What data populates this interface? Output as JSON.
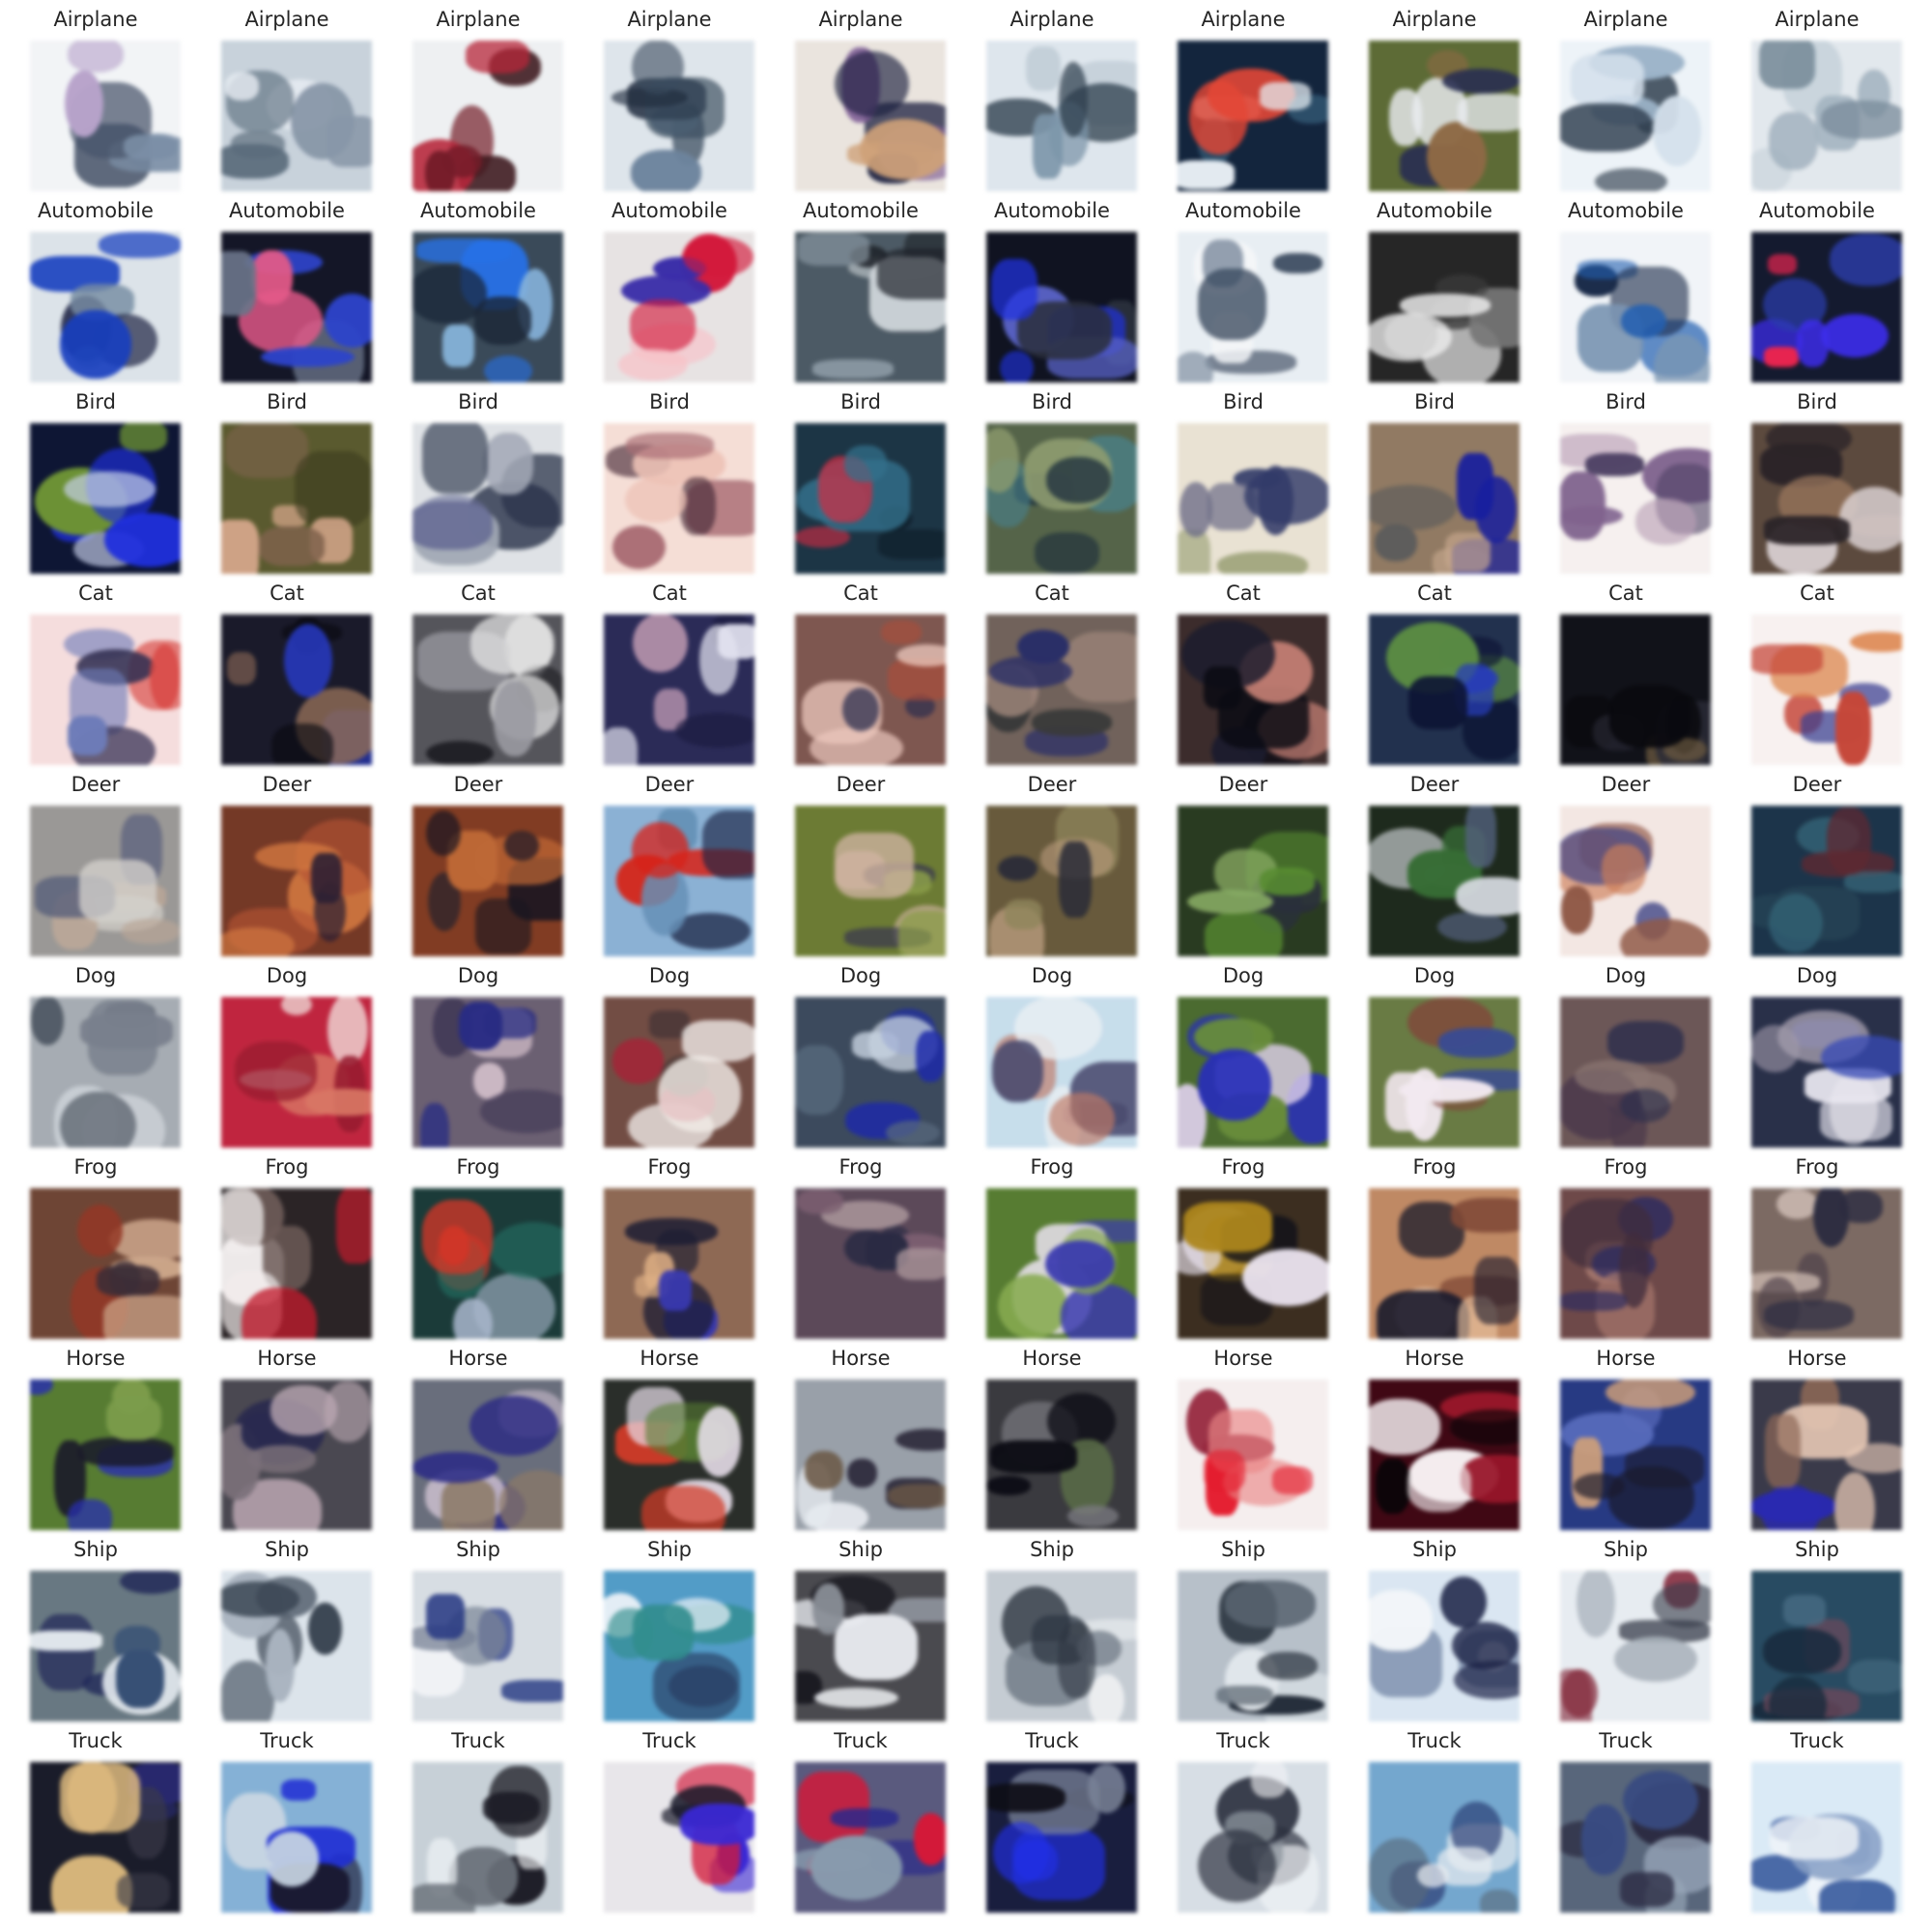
{
  "rows": [
    {
      "label": "Airplane",
      "cells": [
        {
          "bg": "#f2f4f6",
          "blobs": [
            "#7d8ea3",
            "#4a5568",
            "#b6a3c6"
          ]
        },
        {
          "bg": "#c9d2da",
          "blobs": [
            "#5b6a78",
            "#e6ebf0",
            "#8a97a5"
          ]
        },
        {
          "bg": "#eef0f2",
          "blobs": [
            "#6b1f2a",
            "#3a1a1e",
            "#a82b3b"
          ]
        },
        {
          "bg": "#dfe5ea",
          "blobs": [
            "#3d4c5c",
            "#6f8399",
            "#1f2a3a"
          ]
        },
        {
          "bg": "#e9e4df",
          "blobs": [
            "#1b1f3b",
            "#7b5e8f",
            "#c9a27e"
          ]
        },
        {
          "bg": "#dfe6ec",
          "blobs": [
            "#2f3d4a",
            "#7f95a6",
            "#bfcad3"
          ]
        },
        {
          "bg": "#15253a",
          "blobs": [
            "#e7edf2",
            "#d24b3c",
            "#3d6078"
          ]
        },
        {
          "bg": "#5e6a3c",
          "blobs": [
            "#e9ecef",
            "#2a2f4d",
            "#8a6a4a"
          ]
        },
        {
          "bg": "#eef3f7",
          "blobs": [
            "#33404e",
            "#9fb4c6",
            "#d5e0ea"
          ]
        },
        {
          "bg": "#e3e8ec",
          "blobs": [
            "#a5b3be",
            "#c9d3da",
            "#7b8b98"
          ]
        }
      ]
    },
    {
      "label": "Automobile",
      "cells": [
        {
          "bg": "#dde3e8",
          "blobs": [
            "#1d3fae",
            "#2a2f4a",
            "#7a8da0"
          ]
        },
        {
          "bg": "#141625",
          "blobs": [
            "#3145b9",
            "#d55d86",
            "#6b7485"
          ]
        },
        {
          "bg": "#3c4a57",
          "blobs": [
            "#2f6fd6",
            "#8ab1d3",
            "#1b2535"
          ]
        },
        {
          "bg": "#e7e3e3",
          "blobs": [
            "#c01e3c",
            "#3a2f9a",
            "#f2c2c8"
          ]
        },
        {
          "bg": "#4e5a63",
          "blobs": [
            "#1e2228",
            "#8a979f",
            "#cdd3d7"
          ]
        },
        {
          "bg": "#10131f",
          "blobs": [
            "#2333c9",
            "#5b63b8",
            "#2b2f3a"
          ]
        },
        {
          "bg": "#e9eef2",
          "blobs": [
            "#3c4a5c",
            "#f4f6f8",
            "#8894a3"
          ]
        },
        {
          "bg": "#262626",
          "blobs": [
            "#f0f0f0",
            "#767676",
            "#3e3e3e"
          ]
        },
        {
          "bg": "#f1f4f7",
          "blobs": [
            "#2a5ea5",
            "#1b2a45",
            "#7e95ae"
          ]
        },
        {
          "bg": "#151a2c",
          "blobs": [
            "#3d2fd4",
            "#d62a4f",
            "#2e3d9e"
          ]
        }
      ]
    },
    {
      "label": "Bird",
      "cells": [
        {
          "bg": "#0f1630",
          "blobs": [
            "#2330c7",
            "#6f8f3f",
            "#c8d0e6"
          ]
        },
        {
          "bg": "#5a5a34",
          "blobs": [
            "#c9a38a",
            "#7b6350",
            "#3a3a22"
          ]
        },
        {
          "bg": "#dfe2e5",
          "blobs": [
            "#2b3347",
            "#6a6f91",
            "#a3a8b3"
          ]
        },
        {
          "bg": "#f3dfd8",
          "blobs": [
            "#a46f75",
            "#3c2430",
            "#e8c2b8"
          ]
        },
        {
          "bg": "#1f3442",
          "blobs": [
            "#3a6f86",
            "#c23043",
            "#0f1d26"
          ]
        },
        {
          "bg": "#56634c",
          "blobs": [
            "#1f2f3a",
            "#4f7f86",
            "#8f9b74"
          ]
        },
        {
          "bg": "#e8e2d5",
          "blobs": [
            "#333a63",
            "#9aa07a",
            "#6f6f86"
          ]
        },
        {
          "bg": "#8e7a66",
          "blobs": [
            "#1a1f8e",
            "#5b5b5b",
            "#c2a890"
          ]
        },
        {
          "bg": "#f5f0ef",
          "blobs": [
            "#7d6489",
            "#b7a2b5",
            "#4c4260"
          ]
        },
        {
          "bg": "#5a4a40",
          "blobs": [
            "#2a2428",
            "#9a7a63",
            "#d8cfd0"
          ]
        }
      ]
    },
    {
      "label": "Cat",
      "cells": [
        {
          "bg": "#f3dede",
          "blobs": [
            "#6f7bb0",
            "#c84a46",
            "#34304f"
          ]
        },
        {
          "bg": "#1a1a28",
          "blobs": [
            "#0a0a10",
            "#2b3bb0",
            "#8a6c5a"
          ]
        },
        {
          "bg": "#55555a",
          "blobs": [
            "#eeeeee",
            "#1f1f24",
            "#9a9a9f"
          ]
        },
        {
          "bg": "#2b2b52",
          "blobs": [
            "#e3e3ef",
            "#1a1a3a",
            "#c8a5b8"
          ]
        },
        {
          "bg": "#7a5852",
          "blobs": [
            "#e7c8be",
            "#2a2d4a",
            "#a05040"
          ]
        },
        {
          "bg": "#6f625c",
          "blobs": [
            "#2b2f60",
            "#a08a80",
            "#3a3a3a"
          ]
        },
        {
          "bg": "#3a2c2c",
          "blobs": [
            "#0b0b12",
            "#c5867c",
            "#1c1c2c"
          ]
        },
        {
          "bg": "#24314a",
          "blobs": [
            "#0d1430",
            "#5f8a4a",
            "#2b3da8"
          ]
        },
        {
          "bg": "#111218",
          "blobs": [
            "#0a0a0e",
            "#6f5d45",
            "#2a2a35"
          ]
        },
        {
          "bg": "#f7f1f0",
          "blobs": [
            "#b84a3e",
            "#3a3f86",
            "#d48a5a"
          ]
        }
      ]
    },
    {
      "label": "Deer",
      "cells": [
        {
          "bg": "#9a9896",
          "blobs": [
            "#b7a79a",
            "#5a6078",
            "#d3d0cc"
          ]
        },
        {
          "bg": "#6e3a2a",
          "blobs": [
            "#c97a4a",
            "#2a2030",
            "#a9553a"
          ]
        },
        {
          "bg": "#7a3e28",
          "blobs": [
            "#1a1620",
            "#b56a3e",
            "#3d2a2a"
          ]
        },
        {
          "bg": "#8fb0cf",
          "blobs": [
            "#c4281f",
            "#1c2440",
            "#6a8fb0"
          ]
        },
        {
          "bg": "#6d7a3c",
          "blobs": [
            "#c9b2a0",
            "#3a3a4c",
            "#8a9a52"
          ]
        },
        {
          "bg": "#665a40",
          "blobs": [
            "#2a2c36",
            "#8e8560",
            "#b39a80"
          ]
        },
        {
          "bg": "#2b3a24",
          "blobs": [
            "#5c8a3a",
            "#2a2f3a",
            "#8aa86a"
          ]
        },
        {
          "bg": "#1f2a1e",
          "blobs": [
            "#d6d9de",
            "#3c6a3a",
            "#55607a"
          ]
        },
        {
          "bg": "#f2e7e4",
          "blobs": [
            "#8a5a4a",
            "#3a3f7a",
            "#c58060"
          ]
        },
        {
          "bg": "#1f3447",
          "blobs": [
            "#3e6a7a",
            "#5a2a32",
            "#274050"
          ]
        }
      ]
    },
    {
      "label": "Dog",
      "cells": [
        {
          "bg": "#a7acb2",
          "blobs": [
            "#4d5560",
            "#cfd4d9",
            "#7a808a"
          ]
        },
        {
          "bg": "#b02a40",
          "blobs": [
            "#f3eae6",
            "#cf7a6a",
            "#8a1f30"
          ]
        },
        {
          "bg": "#6a6070",
          "blobs": [
            "#2a2d78",
            "#c8b8c2",
            "#3c3650"
          ]
        },
        {
          "bg": "#6e4e46",
          "blobs": [
            "#f0ebe8",
            "#a21e35",
            "#4a3a38"
          ]
        },
        {
          "bg": "#3e4a5a",
          "blobs": [
            "#1e2a9a",
            "#c8d2de",
            "#5a6a7a"
          ]
        },
        {
          "bg": "#c9dde9",
          "blobs": [
            "#4a4a6a",
            "#e9eef2",
            "#b87a6a"
          ]
        },
        {
          "bg": "#4e6a36",
          "blobs": [
            "#2a2fa8",
            "#dcd0e6",
            "#6a8a44"
          ]
        },
        {
          "bg": "#6a7a4a",
          "blobs": [
            "#f1e9ef",
            "#7a4a3e",
            "#3a4a8a"
          ]
        },
        {
          "bg": "#6a5858",
          "blobs": [
            "#2b2d48",
            "#8a7874",
            "#4a3a4a"
          ]
        },
        {
          "bg": "#2a3046",
          "blobs": [
            "#e8e6ee",
            "#3a4aa8",
            "#a09aa8"
          ]
        }
      ]
    },
    {
      "label": "Frog",
      "cells": [
        {
          "bg": "#6a4638",
          "blobs": [
            "#c9a890",
            "#8a3a2a",
            "#3a2e36"
          ]
        },
        {
          "bg": "#2a2426",
          "blobs": [
            "#f0ecec",
            "#6a5a58",
            "#b0202f"
          ]
        },
        {
          "bg": "#1e3a38",
          "blobs": [
            "#c13a2e",
            "#aab6c8",
            "#2a6a60"
          ]
        },
        {
          "bg": "#8a6a58",
          "blobs": [
            "#1c1c30",
            "#d8b08a",
            "#3a3aa0"
          ]
        },
        {
          "bg": "#5a4a58",
          "blobs": [
            "#2a2a40",
            "#a8969a",
            "#7a6070"
          ]
        },
        {
          "bg": "#5a7a3a",
          "blobs": [
            "#3a3aa0",
            "#e8e2ec",
            "#8aa85a"
          ]
        },
        {
          "bg": "#3a2e22",
          "blobs": [
            "#e6e0ea",
            "#a8862a",
            "#111118"
          ]
        },
        {
          "bg": "#b98a6a",
          "blobs": [
            "#1a1a2a",
            "#e8c6a8",
            "#7a4a3a"
          ]
        },
        {
          "bg": "#6a4a4a",
          "blobs": [
            "#2a2a5a",
            "#a07870",
            "#3e2e3a"
          ]
        },
        {
          "bg": "#7a6a64",
          "blobs": [
            "#2c2c3e",
            "#c8b8b0",
            "#4a3e46"
          ]
        }
      ]
    },
    {
      "label": "Horse",
      "cells": [
        {
          "bg": "#5a7a3a",
          "blobs": [
            "#2a30a0",
            "#1a1a28",
            "#7e9a54"
          ]
        },
        {
          "bg": "#4a4850",
          "blobs": [
            "#b8a8b0",
            "#2a2a4a",
            "#7a7078"
          ]
        },
        {
          "bg": "#6a6e7a",
          "blobs": [
            "#2c2c7a",
            "#c3b8c6",
            "#8a7a6a"
          ]
        },
        {
          "bg": "#2a2e2a",
          "blobs": [
            "#e8e0ea",
            "#c4402e",
            "#5a7a3a"
          ]
        },
        {
          "bg": "#9aa0a8",
          "blobs": [
            "#2e2a3a",
            "#e6eaee",
            "#6a5a4a"
          ]
        },
        {
          "bg": "#3a3a3e",
          "blobs": [
            "#0c0c14",
            "#5a6a4a",
            "#7a7a80"
          ]
        },
        {
          "bg": "#f4eeee",
          "blobs": [
            "#cf2030",
            "#8a2a3e",
            "#e08a8a"
          ]
        },
        {
          "bg": "#3a0a14",
          "blobs": [
            "#f2ecee",
            "#0a0508",
            "#8a1a2a"
          ]
        },
        {
          "bg": "#2a3a7a",
          "blobs": [
            "#1a1a2a",
            "#5a6ab0",
            "#c8a080"
          ]
        },
        {
          "bg": "#3a3a48",
          "blobs": [
            "#e2c8b8",
            "#2a2aa0",
            "#8a6a5a"
          ]
        }
      ]
    },
    {
      "label": "Ship",
      "cells": [
        {
          "bg": "#6a7880",
          "blobs": [
            "#1e2450",
            "#e6eaee",
            "#3a5070"
          ]
        },
        {
          "bg": "#dde4ea",
          "blobs": [
            "#3a4450",
            "#aab4be",
            "#5a6470"
          ]
        },
        {
          "bg": "#d8dde2",
          "blobs": [
            "#2a3a7a",
            "#f0f2f5",
            "#7a8494"
          ]
        },
        {
          "bg": "#5a9ac0",
          "blobs": [
            "#3a8a8a",
            "#e6eef4",
            "#2a3a5a"
          ]
        },
        {
          "bg": "#4a4a4e",
          "blobs": [
            "#e8eaee",
            "#1a1a20",
            "#8a8e96"
          ]
        },
        {
          "bg": "#c6ccd2",
          "blobs": [
            "#2e3640",
            "#eef0f2",
            "#7a828c"
          ]
        },
        {
          "bg": "#b8c0c8",
          "blobs": [
            "#1e2630",
            "#e2e6ea",
            "#5a646e"
          ]
        },
        {
          "bg": "#dbe6f0",
          "blobs": [
            "#1a2040",
            "#6a7a98",
            "#f2f5f8"
          ]
        },
        {
          "bg": "#e8ecf0",
          "blobs": [
            "#7a2a3a",
            "#3a3e4a",
            "#aab2ba"
          ]
        },
        {
          "bg": "#2c4a5e",
          "blobs": [
            "#1a2a3a",
            "#4a6a7e",
            "#6a4a5a"
          ]
        }
      ]
    },
    {
      "label": "Truck",
      "cells": [
        {
          "bg": "#1a1c28",
          "blobs": [
            "#e0c08a",
            "#2a2a6a",
            "#3a3a46"
          ]
        },
        {
          "bg": "#8ab0d0",
          "blobs": [
            "#2430c0",
            "#1a1a30",
            "#c8d4e0"
          ]
        },
        {
          "bg": "#c8d0d6",
          "blobs": [
            "#1c1c24",
            "#f2f4f6",
            "#6a7078"
          ]
        },
        {
          "bg": "#e8e6ea",
          "blobs": [
            "#3a2ac0",
            "#c01e3a",
            "#1a1a28"
          ]
        },
        {
          "bg": "#5a5a7a",
          "blobs": [
            "#c01e3a",
            "#2a2a80",
            "#8a9aaa"
          ]
        },
        {
          "bg": "#1a1e3a",
          "blobs": [
            "#2430d0",
            "#0e0e16",
            "#7a8294"
          ]
        },
        {
          "bg": "#d8dee4",
          "blobs": [
            "#2a2e3a",
            "#f2f4f6",
            "#8a929a"
          ]
        },
        {
          "bg": "#7aa6c8",
          "blobs": [
            "#e8ecf0",
            "#2a3a6a",
            "#5a6a7a"
          ]
        },
        {
          "bg": "#5a6678",
          "blobs": [
            "#2a2a3e",
            "#9aa6b6",
            "#3a4a7a"
          ]
        },
        {
          "bg": "#dceaf4",
          "blobs": [
            "#2a4a8a",
            "#8aa0c0",
            "#f0f4f8"
          ]
        }
      ]
    }
  ]
}
